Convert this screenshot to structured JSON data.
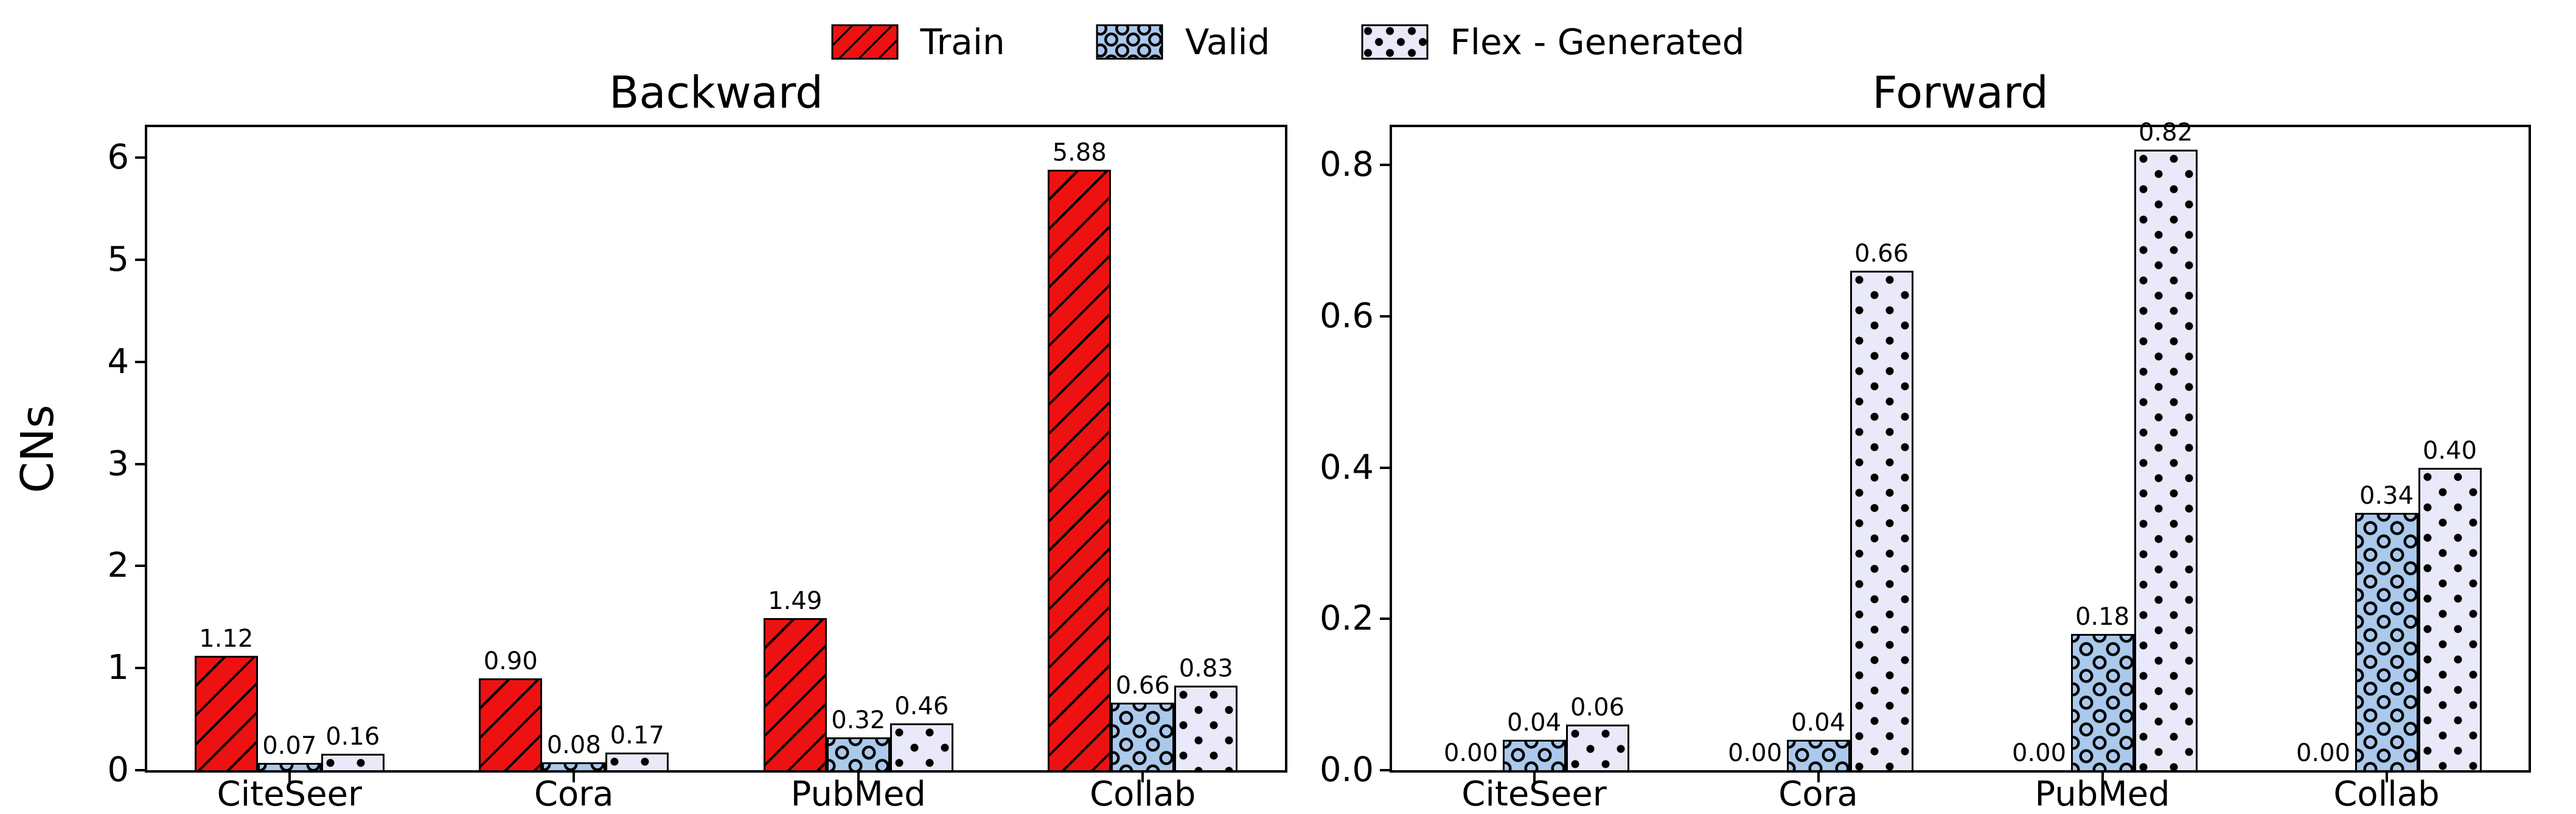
{
  "legend": {
    "items": [
      {
        "label": "Train",
        "color": "#ee1111",
        "hatch": "diagonal-lines"
      },
      {
        "label": "Valid",
        "color": "#abc9ec",
        "hatch": "circles"
      },
      {
        "label": "Flex - Generated",
        "color": "#e9e9f9",
        "hatch": "dots"
      }
    ]
  },
  "ylabel": "CNs",
  "chart_data": [
    {
      "type": "bar",
      "title": "Backward",
      "categories": [
        "CiteSeer",
        "Cora",
        "PubMed",
        "Collab"
      ],
      "series": [
        {
          "name": "Train",
          "values": [
            1.12,
            0.9,
            1.49,
            5.88
          ],
          "labels": [
            "1.12",
            "0.90",
            "1.49",
            "5.88"
          ]
        },
        {
          "name": "Valid",
          "values": [
            0.07,
            0.08,
            0.32,
            0.66
          ],
          "labels": [
            "0.07",
            "0.08",
            "0.32",
            "0.66"
          ]
        },
        {
          "name": "Flex - Generated",
          "values": [
            0.16,
            0.17,
            0.46,
            0.83
          ],
          "labels": [
            "0.16",
            "0.17",
            "0.46",
            "0.83"
          ]
        }
      ],
      "ylabel": "CNs",
      "xlabel": "",
      "ylim": [
        0,
        6.3
      ],
      "yticks": [
        0,
        1,
        2,
        3,
        4,
        5,
        6
      ],
      "yticklabels": [
        "0",
        "1",
        "2",
        "3",
        "4",
        "5",
        "6"
      ],
      "grid": false,
      "legend_position": "top-center-shared"
    },
    {
      "type": "bar",
      "title": "Forward",
      "categories": [
        "CiteSeer",
        "Cora",
        "PubMed",
        "Collab"
      ],
      "series": [
        {
          "name": "Train",
          "values": [
            0.0,
            0.0,
            0.0,
            0.0
          ],
          "labels": [
            "0.00",
            "0.00",
            "0.00",
            "0.00"
          ]
        },
        {
          "name": "Valid",
          "values": [
            0.04,
            0.04,
            0.18,
            0.34
          ],
          "labels": [
            "0.04",
            "0.04",
            "0.18",
            "0.34"
          ]
        },
        {
          "name": "Flex - Generated",
          "values": [
            0.06,
            0.66,
            0.82,
            0.4
          ],
          "labels": [
            "0.06",
            "0.66",
            "0.82",
            "0.40"
          ]
        }
      ],
      "ylabel": "",
      "xlabel": "",
      "ylim": [
        0,
        0.85
      ],
      "yticks": [
        0,
        0.2,
        0.4,
        0.6,
        0.8
      ],
      "yticklabels": [
        "0.0",
        "0.2",
        "0.4",
        "0.6",
        "0.8"
      ],
      "grid": false,
      "legend_position": "top-center-shared"
    }
  ]
}
